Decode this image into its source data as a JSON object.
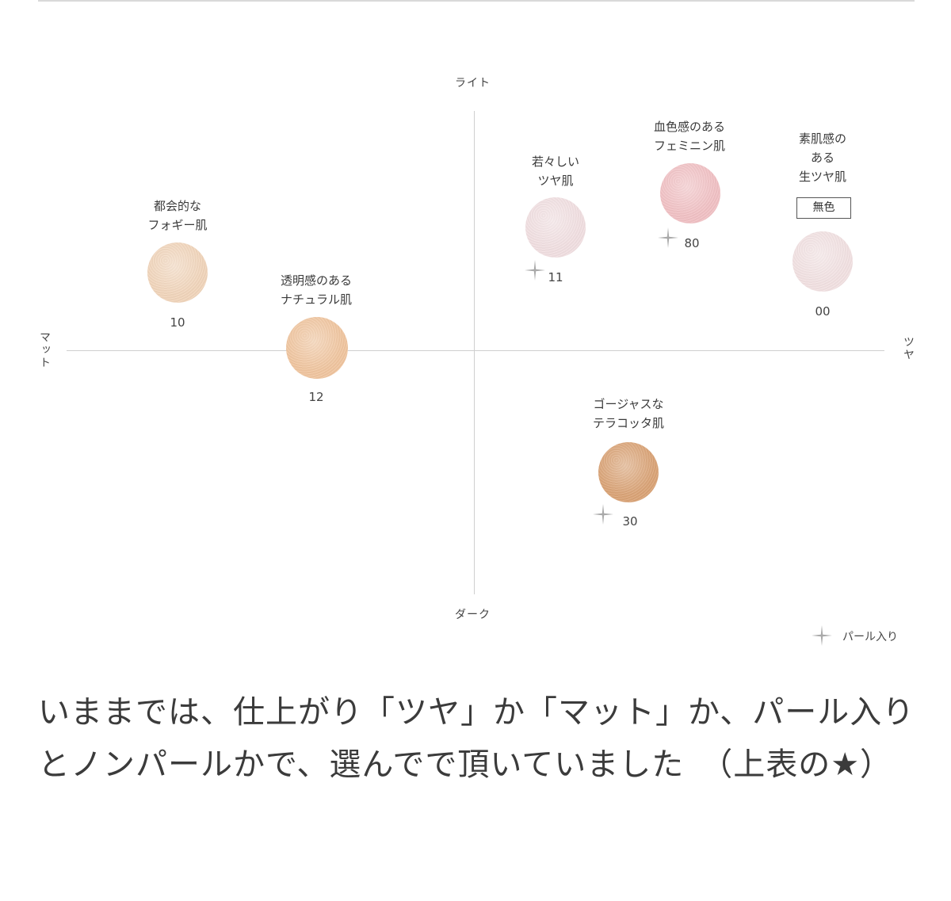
{
  "chart_data": {
    "type": "scatter",
    "axes": {
      "top": "ライト",
      "bottom": "ダーク",
      "left": "マット",
      "right": "ツヤ"
    },
    "points": [
      {
        "code": "10",
        "label_lines": [
          "都会的な",
          "フォギー肌"
        ],
        "color": "#f2d6bc",
        "pearl": false
      },
      {
        "code": "12",
        "label_lines": [
          "透明感のある",
          "ナチュラル肌"
        ],
        "color": "#f1c6a0",
        "pearl": false
      },
      {
        "code": "11",
        "label_lines": [
          "若々しい",
          "ツヤ肌"
        ],
        "color": "#f2e0e2",
        "pearl": true
      },
      {
        "code": "80",
        "label_lines": [
          "血色感のある",
          "フェミニン肌"
        ],
        "color": "#f2c2c5",
        "pearl": true
      },
      {
        "code": "00",
        "label_lines": [
          "素肌感の",
          "ある",
          "生ツヤ肌"
        ],
        "badge": "無色",
        "color": "#f3e2e3",
        "pearl": false
      },
      {
        "code": "30",
        "label_lines": [
          "ゴージャスな",
          "テラコッタ肌"
        ],
        "color": "#dba477",
        "pearl": true
      }
    ],
    "legend": {
      "pearl_label": "パール入り"
    }
  },
  "caption": "いままでは、仕上がり「ツヤ」か「マット」か、パール入りとノンパールかで、選んでで頂いていました　（上表の★）"
}
